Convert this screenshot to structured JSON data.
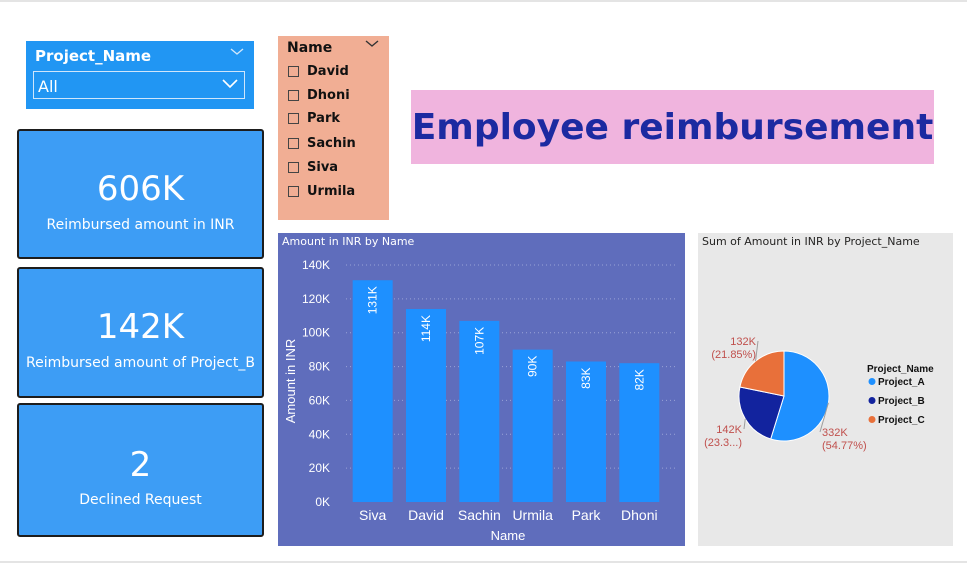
{
  "slicer_project": {
    "title": "Project_Name",
    "value": "All"
  },
  "slicer_name": {
    "title": "Name",
    "items": [
      "David",
      "Dhoni",
      "Park",
      "Sachin",
      "Siva",
      "Urmila"
    ]
  },
  "kpi": [
    {
      "value": "606K",
      "label": "Reimbursed amount in INR"
    },
    {
      "value": "142K",
      "label": "Reimbursed amount of Project_B"
    },
    {
      "value": "2",
      "label": "Declined Request"
    }
  ],
  "banner": {
    "title": "Employee reimbursement"
  },
  "colors": {
    "bar": "#1e90ff",
    "bar_bg": "#5f6dbc",
    "project_a": "#1e90ff",
    "project_b": "#12239e",
    "project_c": "#e8703a",
    "banner_bg": "#f0b4de",
    "banner_text": "#1c2aa1"
  },
  "chart_data": [
    {
      "type": "bar",
      "title": "Amount in INR by Name",
      "xlabel": "Name",
      "ylabel": "Amount in INR",
      "categories": [
        "Siva",
        "David",
        "Sachin",
        "Urmila",
        "Park",
        "Dhoni"
      ],
      "values": [
        131,
        114,
        107,
        90,
        83,
        82
      ],
      "data_labels": [
        "131K",
        "114K",
        "107K",
        "90K",
        "83K",
        "82K"
      ],
      "y_ticks": [
        "0K",
        "20K",
        "40K",
        "60K",
        "80K",
        "100K",
        "120K",
        "140K"
      ],
      "ylim": [
        0,
        140
      ],
      "grid": true
    },
    {
      "type": "pie",
      "title": "Sum of Amount in INR by Project_Name",
      "legend_title": "Project_Name",
      "legend_position": "right",
      "slices": [
        {
          "name": "Project_A",
          "value": 332,
          "label": "332K",
          "pct_label": "(54.77%)"
        },
        {
          "name": "Project_B",
          "value": 142,
          "label": "142K",
          "pct_label": "(23.3...)"
        },
        {
          "name": "Project_C",
          "value": 132,
          "label": "132K",
          "pct_label": "(21.85%)"
        }
      ]
    }
  ]
}
